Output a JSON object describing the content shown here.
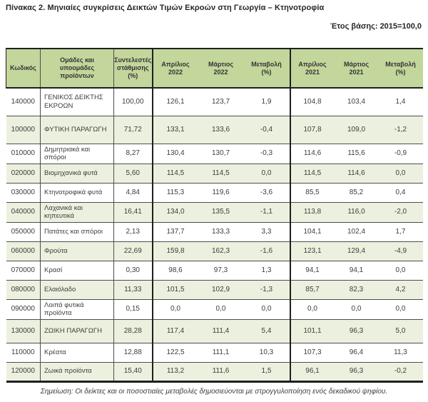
{
  "title": "Πίνακας 2. Μηνιαίες συγκρίσεις Δεικτών Τιμών Εκροών στη Γεωργία – Κτηνοτροφία",
  "base_year": "Έτος βάσης: 2015=100,0",
  "note": "Σημείωση: Οι δείκτες και οι ποσοστιαίες μεταβολές δημοσιεύονται με στρογγυλοποίηση ενός δεκαδικού ψηφίου.",
  "colors": {
    "header_bg": "#c3d69b",
    "alt_row_bg": "#ebf1de",
    "border_dark": "#1f1f1f",
    "text": "#3d3d3d"
  },
  "table": {
    "headers": {
      "code": "Κωδικός",
      "groups": "Ομάδες και\nυποομάδες\nπροϊόντων",
      "weight": "Συντελεστές\nστάθμισης\n(%)",
      "apr2022": "Απρίλιος\n2022",
      "mar2022": "Μάρτιος\n2022",
      "chg2022": "Μεταβολή\n(%)",
      "apr2021": "Απρίλιος\n2021",
      "mar2021": "Μάρτιος\n2021",
      "chg2021": "Μεταβολή\n(%)"
    },
    "rows": [
      [
        "140000",
        "ΓΕΝΙΚΟΣ ΔΕΙΚΤΗΣ ΕΚΡΟΩΝ",
        "100,00",
        "126,1",
        "123,7",
        "1,9",
        "104,8",
        "103,4",
        "1,4"
      ],
      [
        "100000",
        "ΦΥΤΙΚΗ ΠΑΡΑΓΩΓΗ",
        "71,72",
        "133,1",
        "133,6",
        "-0,4",
        "107,8",
        "109,0",
        "-1,2"
      ],
      [
        "010000",
        "Δημητριακά και σπόροι",
        "8,27",
        "130,4",
        "130,7",
        "-0,3",
        "114,6",
        "115,6",
        "-0,9"
      ],
      [
        "020000",
        "Βιομηχανικά φυτά",
        "5,60",
        "114,5",
        "114,5",
        "0,0",
        "114,5",
        "114,6",
        "0,0"
      ],
      [
        "030000",
        "Κτηνοτροφικά φυτά",
        "4,84",
        "115,3",
        "119,6",
        "-3,6",
        "85,5",
        "85,2",
        "0,4"
      ],
      [
        "040000",
        "Λαχανικά και κηπευτικά",
        "16,41",
        "134,0",
        "135,5",
        "-1,1",
        "113,8",
        "116,0",
        "-2,0"
      ],
      [
        "050000",
        "Πατάτες και σπόροι",
        "2,13",
        "137,7",
        "133,3",
        "3,3",
        "104,1",
        "102,4",
        "1,7"
      ],
      [
        "060000",
        "Φρούτα",
        "22,69",
        "159,8",
        "162,3",
        "-1,6",
        "123,1",
        "129,4",
        "-4,9"
      ],
      [
        "070000",
        "Κρασί",
        "0,30",
        "98,6",
        "97,3",
        "1,3",
        "94,1",
        "94,1",
        "0,0"
      ],
      [
        "080000",
        "Ελαιόλαδο",
        "11,33",
        "101,5",
        "102,9",
        "-1,3",
        "85,7",
        "82,3",
        "4,2"
      ],
      [
        "090000",
        "Λοιπά φυτικά προϊόντα",
        "0,15",
        "0,0",
        "0,0",
        "0,0",
        "0,0",
        "0,0",
        "0,0"
      ],
      [
        "130000",
        "ΖΩΙΚΗ ΠΑΡΑΓΩΓΗ",
        "28,28",
        "117,4",
        "111,4",
        "5,4",
        "101,1",
        "96,3",
        "5,0"
      ],
      [
        "110000",
        "Κρέατα",
        "12,88",
        "122,5",
        "111,1",
        "10,3",
        "107,3",
        "96,4",
        "11,3"
      ],
      [
        "120000",
        "Ζωικά προϊόντα",
        "15,40",
        "113,2",
        "111,6",
        "1,5",
        "96,1",
        "96,3",
        "-0,2"
      ]
    ]
  }
}
